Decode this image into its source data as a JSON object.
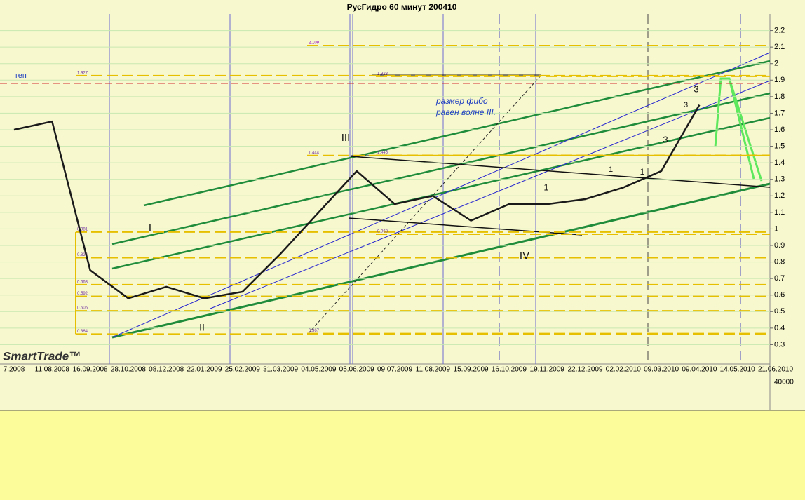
{
  "chart_data": {
    "type": "line",
    "title": "РусГидро 60 минут 200410",
    "logo": "SmartTrade™",
    "categories": [
      "7.2008",
      "11.08.2008",
      "16.09.2008",
      "28.10.2008",
      "08.12.2008",
      "22.01.2009",
      "25.02.2009",
      "31.03.2009",
      "04.05.2009",
      "05.06.2009",
      "09.07.2009",
      "11.08.2009",
      "15.09.2009",
      "16.10.2009",
      "19.11.2009",
      "22.12.2009",
      "02.02.2010",
      "09.03.2010",
      "09.04.2010",
      "14.05.2010",
      "21.06.2010"
    ],
    "series": [
      {
        "name": "РусГидро",
        "color": "#1a1a1a",
        "values": [
          1.6,
          1.65,
          0.75,
          0.58,
          0.65,
          0.58,
          0.62,
          0.85,
          1.1,
          1.35,
          1.15,
          1.2,
          1.05,
          1.15,
          1.15,
          1.18,
          1.25,
          1.35,
          1.75,
          null,
          null
        ]
      }
    ],
    "ylim": [
      0.2,
      2.3
    ],
    "yticks": [
      2.2,
      2.1,
      2,
      1.9,
      1.8,
      1.7,
      1.6,
      1.5,
      1.4,
      1.3,
      1.2,
      1.1,
      1,
      0.9,
      0.8,
      0.7,
      0.6,
      0.5,
      0.4,
      0.3
    ],
    "gap_level": 1.88,
    "fib_left": [
      1.927,
      0.981,
      0.826,
      0.663,
      0.592,
      0.505,
      0.364
    ],
    "fib_mid": [
      2.109,
      1.444,
      0.367
    ],
    "fib_right": [
      1.923,
      1.445,
      0.968
    ],
    "annotations": [
      "геп",
      "размер фибо",
      "равен волне III."
    ],
    "wave_labels": [
      "I",
      "II",
      "III",
      "IV",
      "1",
      "1",
      "1",
      "3",
      "3",
      "3"
    ],
    "volume_label": "40000",
    "grid": true
  }
}
